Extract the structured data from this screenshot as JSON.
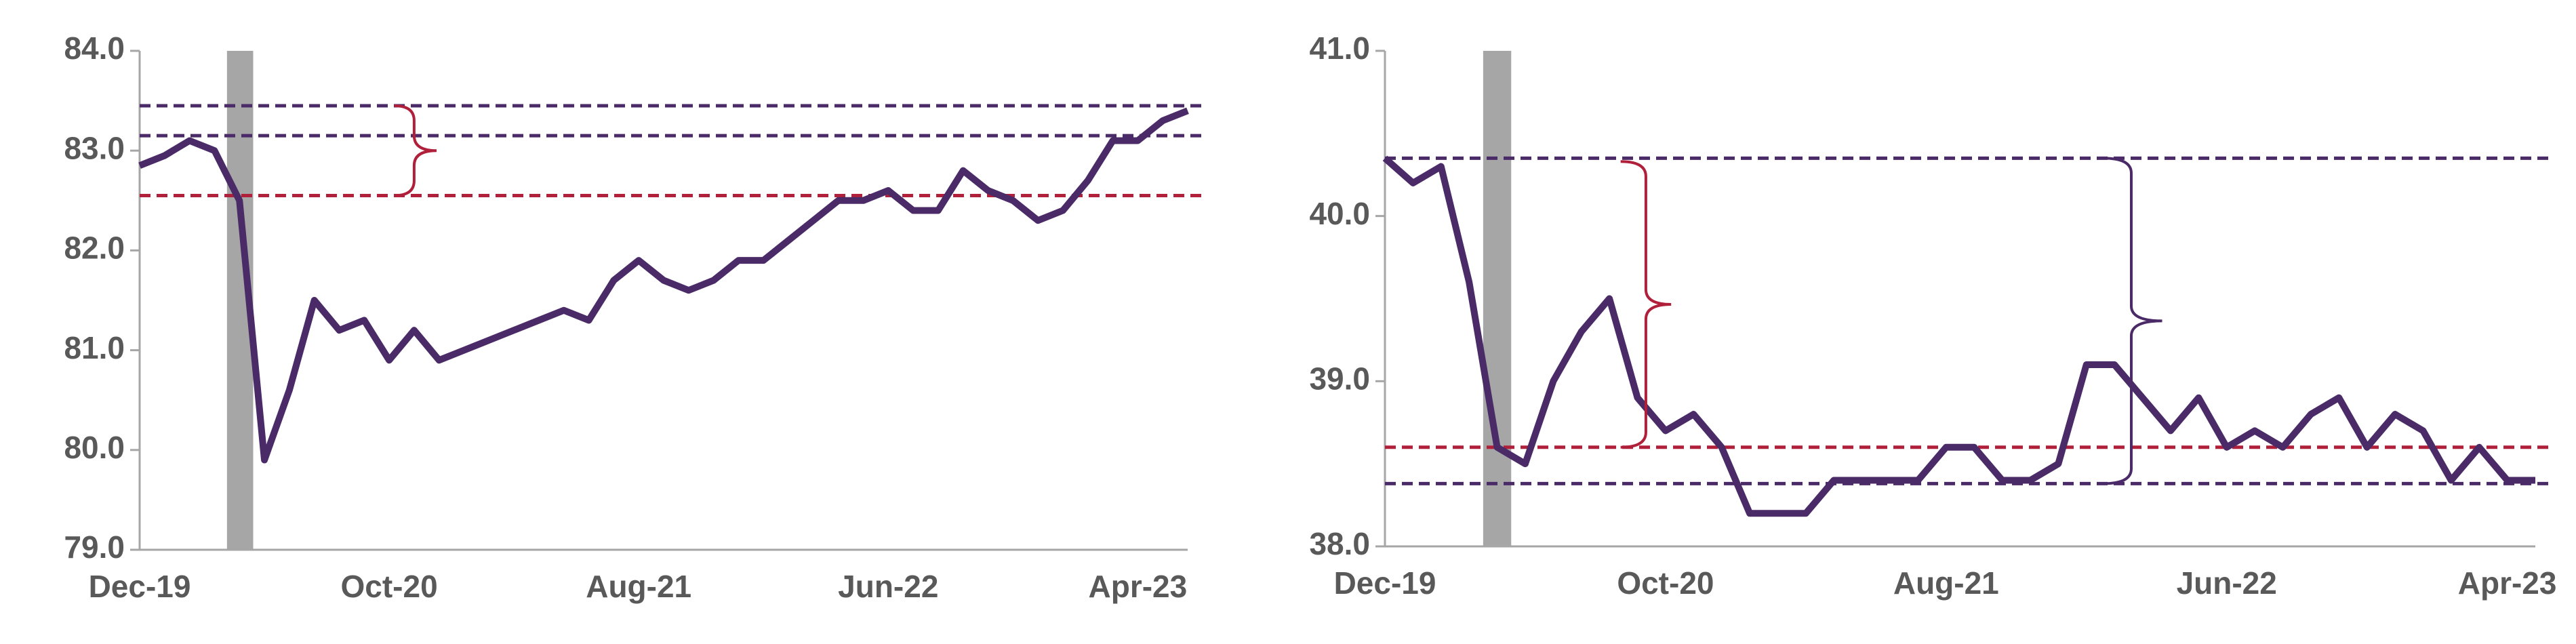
{
  "chart_data": [
    {
      "type": "line",
      "categories": [
        "Dec-19",
        null,
        null,
        null,
        null,
        null,
        null,
        null,
        null,
        null,
        "Oct-20",
        null,
        null,
        null,
        null,
        null,
        null,
        null,
        null,
        null,
        "Aug-21",
        null,
        null,
        null,
        null,
        null,
        null,
        null,
        null,
        null,
        "Jun-22",
        null,
        null,
        null,
        null,
        null,
        null,
        null,
        null,
        null,
        "Apr-23",
        null,
        null
      ],
      "series": [
        {
          "color": "#4b2a68",
          "values": [
            82.85,
            82.95,
            83.1,
            83.0,
            82.5,
            79.9,
            80.6,
            81.5,
            81.2,
            81.3,
            80.9,
            81.2,
            80.9,
            81.0,
            81.1,
            81.2,
            81.3,
            81.4,
            81.3,
            81.7,
            81.9,
            81.7,
            81.6,
            81.7,
            81.9,
            81.9,
            82.1,
            82.3,
            82.5,
            82.5,
            82.6,
            82.4,
            82.4,
            82.8,
            82.6,
            82.5,
            82.3,
            82.4,
            82.7,
            83.1,
            83.1,
            83.3,
            83.4
          ]
        }
      ],
      "ylim": [
        79,
        84
      ],
      "yticks": [
        {
          "value": 79,
          "label": "79.0"
        },
        {
          "value": 80,
          "label": "80.0"
        },
        {
          "value": 81,
          "label": "81.0"
        },
        {
          "value": 82,
          "label": "82.0"
        },
        {
          "value": 83,
          "label": "83.0"
        },
        {
          "value": 84,
          "label": "84.0"
        }
      ],
      "shaded": [
        3.5,
        4.55
      ],
      "reference_lines": [
        {
          "value": 83.45,
          "color": "#4b2a68"
        },
        {
          "value": 83.15,
          "color": "#4b2a68"
        },
        {
          "value": 82.55,
          "color": "#b0203a"
        }
      ],
      "braces": [
        {
          "from": 83.45,
          "to": 82.55,
          "color": "#b0203a"
        }
      ]
    },
    {
      "type": "line",
      "categories": [
        "Dec-19",
        null,
        null,
        null,
        null,
        null,
        null,
        null,
        null,
        null,
        "Oct-20",
        null,
        null,
        null,
        null,
        null,
        null,
        null,
        null,
        null,
        "Aug-21",
        null,
        null,
        null,
        null,
        null,
        null,
        null,
        null,
        null,
        "Jun-22",
        null,
        null,
        null,
        null,
        null,
        null,
        null,
        null,
        null,
        "Apr-23",
        null
      ],
      "series": [
        {
          "color": "#4b2a68",
          "values": [
            40.35,
            40.2,
            40.3,
            39.6,
            38.6,
            38.5,
            39.0,
            39.3,
            39.5,
            38.9,
            38.7,
            38.8,
            38.6,
            38.2,
            38.2,
            38.2,
            38.4,
            38.4,
            38.4,
            38.4,
            38.6,
            38.6,
            38.4,
            38.4,
            38.5,
            39.1,
            39.1,
            38.9,
            38.7,
            38.9,
            38.6,
            38.7,
            38.6,
            38.8,
            38.9,
            38.6,
            38.8,
            38.7,
            38.4,
            38.6,
            38.4,
            38.4
          ]
        }
      ],
      "ylim": [
        38,
        41
      ],
      "yticks": [
        {
          "value": 38,
          "label": "38.0"
        },
        {
          "value": 39,
          "label": "39.0"
        },
        {
          "value": 40,
          "label": "40.0"
        },
        {
          "value": 41,
          "label": "41.0"
        }
      ],
      "shaded": [
        3.5,
        4.5
      ],
      "reference_lines": [
        {
          "value": 40.35,
          "color": "#4b2a68"
        },
        {
          "value": 38.6,
          "color": "#b0203a"
        },
        {
          "value": 38.38,
          "color": "#4b2a68"
        }
      ],
      "braces": [
        {
          "from": 40.33,
          "to": 38.6,
          "color": "#b0203a"
        },
        {
          "from": 40.35,
          "to": 38.38,
          "color": "#4b2a68"
        }
      ]
    }
  ]
}
